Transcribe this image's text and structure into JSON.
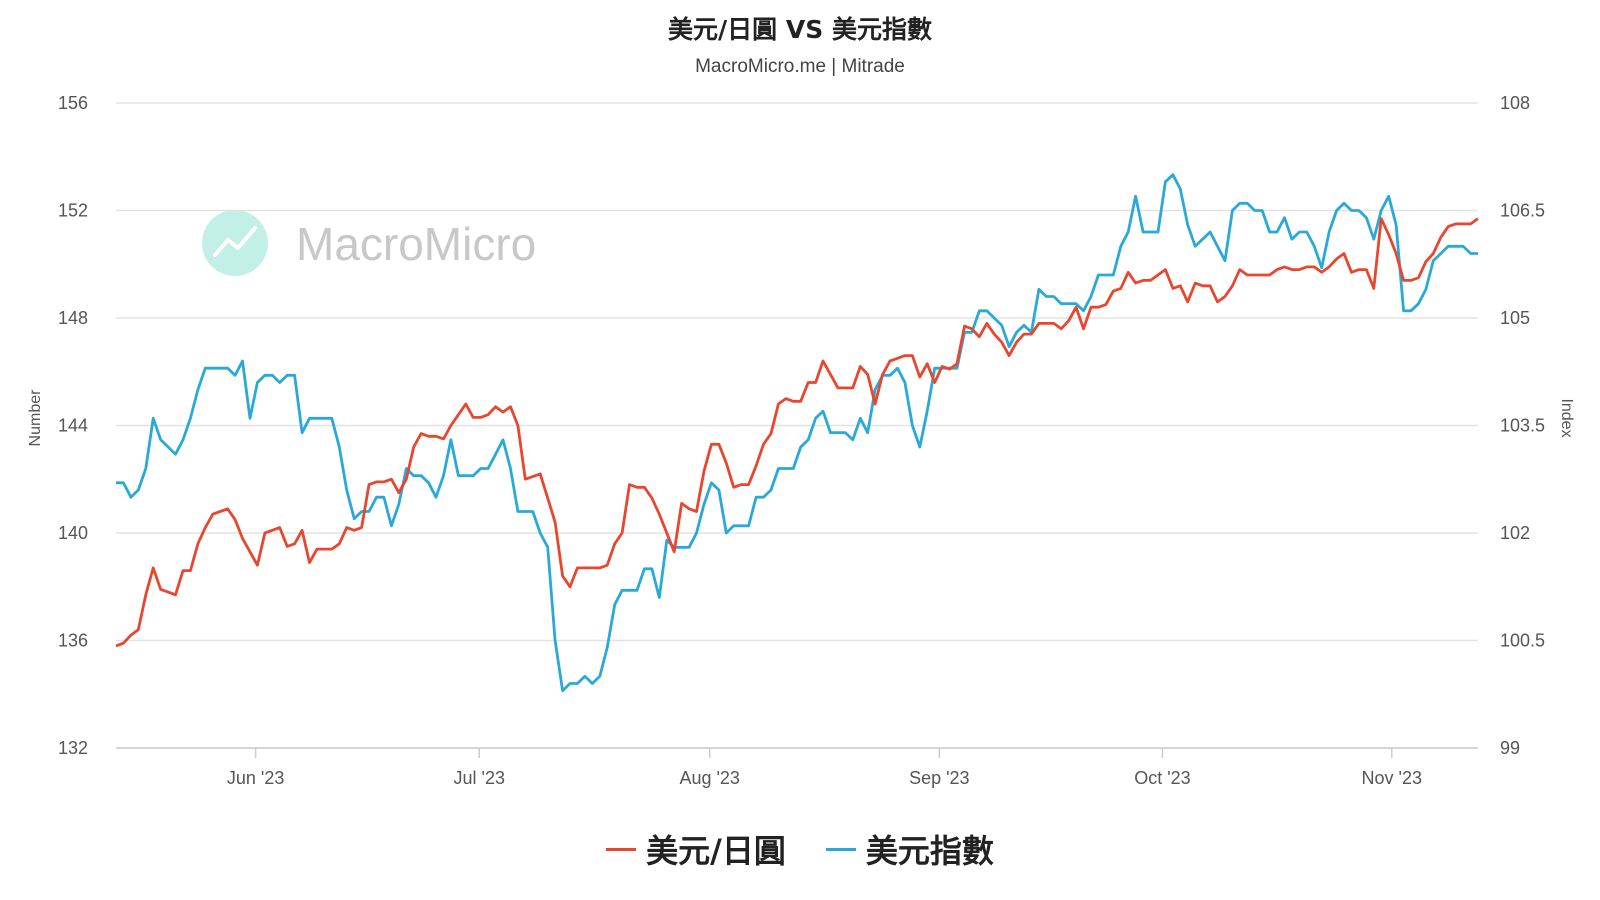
{
  "title": "美元/日圓 VS 美元指數",
  "subtitle": "MacroMicro.me | Mitrade",
  "watermark": "MacroMicro",
  "colors": {
    "usdjpy": "#e8472f",
    "dxy": "#2aa9d8",
    "grid": "#e3e3e3",
    "watermark_logo": "#8fe3d3"
  },
  "chart_data": {
    "type": "line",
    "x_ticks": [
      "Jun '23",
      "Jul '23",
      "Aug '23",
      "Sep '23",
      "Oct '23",
      "Nov '23"
    ],
    "y_left": {
      "label": "Number",
      "min": 132,
      "max": 156,
      "ticks": [
        "156",
        "152",
        "148",
        "144",
        "140",
        "136",
        "132"
      ]
    },
    "y_right": {
      "label": "Index",
      "min": 99,
      "max": 108,
      "ticks": [
        "108",
        "106.5",
        "105",
        "103.5",
        "102",
        "100.5",
        "99"
      ]
    },
    "grid": true,
    "legend_position": "bottom-center",
    "series": [
      {
        "name": "美元/日圓",
        "axis": "left",
        "values": [
          135.8,
          135.9,
          136.2,
          136.4,
          137.7,
          138.7,
          137.9,
          137.8,
          137.7,
          138.6,
          138.6,
          139.6,
          140.2,
          140.7,
          140.8,
          140.9,
          140.5,
          139.8,
          139.3,
          138.8,
          140.0,
          140.1,
          140.2,
          139.5,
          139.6,
          140.1,
          138.9,
          139.4,
          139.4,
          139.4,
          139.6,
          140.2,
          140.1,
          140.2,
          141.8,
          141.9,
          141.9,
          142.0,
          141.5,
          142.0,
          143.2,
          143.7,
          143.6,
          143.6,
          143.5,
          144.0,
          144.4,
          144.8,
          144.3,
          144.3,
          144.4,
          144.7,
          144.5,
          144.7,
          144.0,
          142.0,
          142.1,
          142.2,
          141.3,
          140.4,
          138.4,
          138.0,
          138.7,
          138.7,
          138.7,
          138.7,
          138.8,
          139.6,
          140.0,
          141.8,
          141.7,
          141.7,
          141.3,
          140.7,
          140.0,
          139.3,
          141.1,
          140.9,
          140.8,
          142.3,
          143.3,
          143.3,
          142.6,
          141.7,
          141.8,
          141.8,
          142.5,
          143.3,
          143.7,
          144.8,
          145.0,
          144.9,
          144.9,
          145.6,
          145.6,
          146.4,
          145.9,
          145.4,
          145.4,
          145.4,
          146.2,
          145.9,
          144.8,
          145.9,
          146.4,
          146.5,
          146.6,
          146.6,
          145.8,
          146.3,
          145.6,
          146.2,
          146.1,
          146.3,
          147.7,
          147.6,
          147.3,
          147.8,
          147.4,
          147.1,
          146.6,
          147.1,
          147.4,
          147.4,
          147.8,
          147.8,
          147.8,
          147.6,
          147.9,
          148.4,
          147.6,
          148.4,
          148.4,
          148.5,
          149.0,
          149.1,
          149.7,
          149.3,
          149.4,
          149.4,
          149.6,
          149.8,
          149.1,
          149.2,
          148.6,
          149.3,
          149.2,
          149.2,
          148.6,
          148.8,
          149.2,
          149.8,
          149.6,
          149.6,
          149.6,
          149.6,
          149.8,
          149.9,
          149.8,
          149.8,
          149.9,
          149.9,
          149.7,
          149.9,
          150.2,
          150.4,
          149.7,
          149.8,
          149.8,
          149.1,
          151.7,
          151.1,
          150.4,
          149.4,
          149.4,
          149.5,
          150.1,
          150.4,
          151.0,
          151.4,
          151.5,
          151.5,
          151.5,
          151.7
        ]
      },
      {
        "name": "美元指數",
        "axis": "right",
        "values": [
          102.7,
          102.7,
          102.5,
          102.6,
          102.9,
          103.6,
          103.3,
          103.2,
          103.1,
          103.3,
          103.6,
          104.0,
          104.3,
          104.3,
          104.3,
          104.3,
          104.2,
          104.4,
          103.6,
          104.1,
          104.2,
          104.2,
          104.1,
          104.2,
          104.2,
          103.4,
          103.6,
          103.6,
          103.6,
          103.6,
          103.2,
          102.6,
          102.2,
          102.3,
          102.3,
          102.5,
          102.5,
          102.1,
          102.4,
          102.9,
          102.8,
          102.8,
          102.7,
          102.5,
          102.8,
          103.3,
          102.8,
          102.8,
          102.8,
          102.9,
          102.9,
          103.1,
          103.3,
          102.9,
          102.3,
          102.3,
          102.3,
          102.0,
          101.8,
          100.5,
          99.8,
          99.9,
          99.9,
          100.0,
          99.9,
          100.0,
          100.4,
          101.0,
          101.2,
          101.2,
          101.2,
          101.5,
          101.5,
          101.1,
          101.9,
          101.8,
          101.8,
          101.8,
          102.0,
          102.4,
          102.7,
          102.6,
          102.0,
          102.1,
          102.1,
          102.1,
          102.5,
          102.5,
          102.6,
          102.9,
          102.9,
          102.9,
          103.2,
          103.3,
          103.6,
          103.7,
          103.4,
          103.4,
          103.4,
          103.3,
          103.6,
          103.4,
          104.0,
          104.2,
          104.2,
          104.3,
          104.1,
          103.5,
          103.2,
          103.7,
          104.3,
          104.3,
          104.3,
          104.3,
          104.8,
          104.8,
          105.1,
          105.1,
          105.0,
          104.9,
          104.6,
          104.8,
          104.9,
          104.8,
          105.4,
          105.3,
          105.3,
          105.2,
          105.2,
          105.2,
          105.1,
          105.3,
          105.6,
          105.6,
          105.6,
          106.0,
          106.2,
          106.7,
          106.2,
          106.2,
          106.2,
          106.9,
          107.0,
          106.8,
          106.3,
          106.0,
          106.1,
          106.2,
          106.0,
          105.8,
          106.5,
          106.6,
          106.6,
          106.5,
          106.5,
          106.2,
          106.2,
          106.4,
          106.1,
          106.2,
          106.2,
          106.0,
          105.7,
          106.2,
          106.5,
          106.6,
          106.5,
          106.5,
          106.4,
          106.1,
          106.5,
          106.7,
          106.3,
          105.1,
          105.1,
          105.2,
          105.4,
          105.8,
          105.9,
          106.0,
          106.0,
          106.0,
          105.9,
          105.9
        ]
      }
    ]
  }
}
